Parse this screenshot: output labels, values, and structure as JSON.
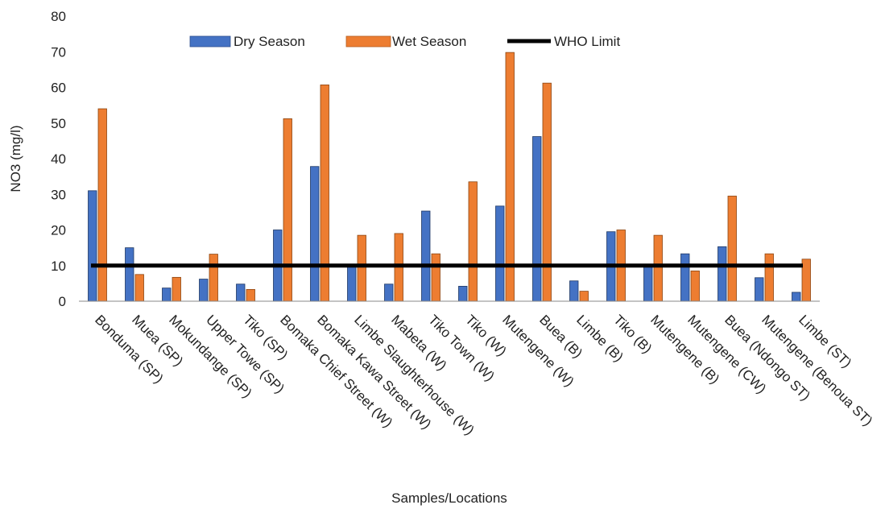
{
  "chart_data": {
    "type": "bar",
    "xlabel": "Samples/Locations",
    "ylabel": "NO3 (mg/l)",
    "ylim": [
      0,
      80
    ],
    "yticks": [
      0,
      10,
      20,
      30,
      40,
      50,
      60,
      70,
      80
    ],
    "grid": false,
    "legend_position": "top",
    "categories": [
      "Bonduma (SP)",
      "Muea (SP)",
      "Mokundange (SP)",
      "Upper Towe (SP)",
      "Tiko (SP)",
      "Bomaka Chief Street (W)",
      "Bomaka Kawa Street (W)",
      "Limbe Slaughterhouse (W)",
      "Mabeta (W)",
      "Tiko Town (W)",
      "Tiko (W)",
      "Mutengene (W)",
      "Buea (B)",
      "Limbe (B)",
      "Tiko (B)",
      "Mutengene (B)",
      "Mutengene (CW)",
      "Buea (Ndongo ST)",
      "Mutengene (Benoua ST)",
      "Limbe (ST)"
    ],
    "series": [
      {
        "name": "Dry Season",
        "color": "#4472C4",
        "values": [
          31,
          15,
          3.7,
          6.2,
          4.8,
          20,
          37.8,
          10,
          4.8,
          25.3,
          4.2,
          26.7,
          46.2,
          5.7,
          19.5,
          10,
          13.3,
          15.3,
          6.6,
          2.5
        ]
      },
      {
        "name": "Wet Season",
        "color": "#ED7D31",
        "values": [
          54,
          7.5,
          6.7,
          13.2,
          3.3,
          51.2,
          60.7,
          18.5,
          19,
          13.3,
          33.5,
          69.8,
          61.2,
          2.8,
          20,
          18.5,
          8.5,
          29.5,
          13.3,
          11.8
        ]
      }
    ],
    "reference_line": {
      "name": "WHO Limit",
      "value": 10,
      "color": "#000000"
    }
  }
}
